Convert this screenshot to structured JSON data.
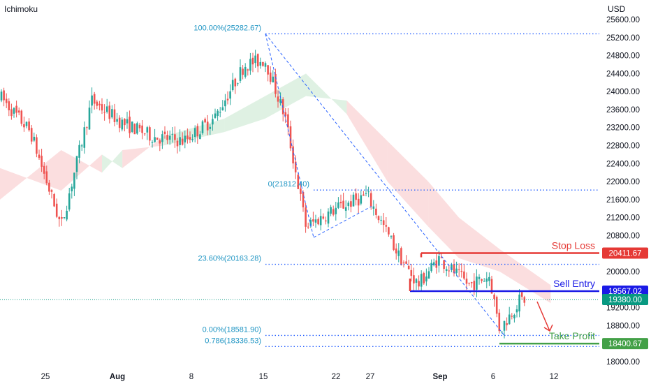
{
  "indicator_name": "Ichimoku",
  "currency": "USD",
  "colors": {
    "up": "#26a69a",
    "down": "#ef5350",
    "fib": "#2962ff",
    "fib_text": "#2196c4",
    "stop": "#e53935",
    "entry": "#1a1ae6",
    "profit": "#43a047",
    "current": "#089981",
    "cloud_bull": "#b7dfc0",
    "cloud_bear": "#f7b6b8",
    "axis_text": "#131722"
  },
  "chart_data": {
    "type": "candlestick",
    "title": "",
    "y_axis_labels": [
      "25600.00",
      "25200.00",
      "24800.00",
      "24400.00",
      "24000.00",
      "23600.00",
      "23200.00",
      "22800.00",
      "22400.00",
      "22000.00",
      "21600.00",
      "21200.00",
      "20800.00",
      "20400.00",
      "20000.00",
      "19600.00",
      "19200.00",
      "18800.00",
      "18400.00",
      "18000.00"
    ],
    "x_axis_labels": [
      "25",
      "Aug",
      "8",
      "15",
      "22",
      "27",
      "Sep",
      "6",
      "12"
    ],
    "ylim": [
      17850,
      25900
    ],
    "fib_levels": [
      {
        "label": "100.00%(25282.67)",
        "value": 25282.67
      },
      {
        "label": "0(21812.40)",
        "value": 21812.4
      },
      {
        "label": "23.60%(20163.28)",
        "value": 20163.28
      },
      {
        "label": "0.00%(18581.90)",
        "value": 18581.9
      },
      {
        "label": "0.786(18336.53)",
        "value": 18336.53
      }
    ],
    "annotations": {
      "stop_loss": {
        "label": "Stop Loss",
        "value": 20411.67,
        "value_label": "20411.67"
      },
      "sell_entry": {
        "label": "Sell Entry",
        "value": 19567.02,
        "value_label": "19567.02"
      },
      "take_profit": {
        "label": "Take Profit",
        "value": 18400.67,
        "value_label": "18400.67"
      },
      "current_price": {
        "value": 19380.0,
        "value_label": "19380.00"
      }
    },
    "price_path": [
      {
        "date": "Jul 20",
        "price": 23900
      },
      {
        "date": "Jul 23",
        "price": 23100
      },
      {
        "date": "Jul 26",
        "price": 21000
      },
      {
        "date": "Jul 29",
        "price": 23800
      },
      {
        "date": "Aug 1",
        "price": 23300
      },
      {
        "date": "Aug 4",
        "price": 23000
      },
      {
        "date": "Aug 7",
        "price": 22900
      },
      {
        "date": "Aug 10",
        "price": 23400
      },
      {
        "date": "Aug 13",
        "price": 24600
      },
      {
        "date": "Aug 15",
        "price": 24700
      },
      {
        "date": "Aug 17",
        "price": 23400
      },
      {
        "date": "Aug 19",
        "price": 21000
      },
      {
        "date": "Aug 22",
        "price": 21400
      },
      {
        "date": "Aug 25",
        "price": 21700
      },
      {
        "date": "Aug 28",
        "price": 20400
      },
      {
        "date": "Aug 30",
        "price": 19700
      },
      {
        "date": "Sep 1",
        "price": 20300
      },
      {
        "date": "Sep 4",
        "price": 19700
      },
      {
        "date": "Sep 6",
        "price": 19900
      },
      {
        "date": "Sep 7",
        "price": 18700
      },
      {
        "date": "Sep 9",
        "price": 19380
      }
    ],
    "cloud": [
      {
        "date": "Jul 20",
        "a": 22300,
        "b": 21600
      },
      {
        "date": "Jul 26",
        "a": 21800,
        "b": 22700
      },
      {
        "date": "Jul 30",
        "a": 22600,
        "b": 22200
      },
      {
        "date": "Aug 1",
        "a": 22300,
        "b": 22700
      },
      {
        "date": "Aug 5",
        "a": 23000,
        "b": 22800
      },
      {
        "date": "Aug 11",
        "a": 23400,
        "b": 23100
      },
      {
        "date": "Aug 15",
        "a": 23900,
        "b": 23400
      },
      {
        "date": "Aug 19",
        "a": 24400,
        "b": 23900
      },
      {
        "date": "Aug 23",
        "a": 23500,
        "b": 23800
      },
      {
        "date": "Aug 27",
        "a": 22000,
        "b": 22900
      },
      {
        "date": "Aug 31",
        "a": 21000,
        "b": 22000
      },
      {
        "date": "Sep 3",
        "a": 20300,
        "b": 21200
      },
      {
        "date": "Sep 7",
        "a": 20000,
        "b": 20500
      },
      {
        "date": "Sep 12",
        "a": 19300,
        "b": 19700
      }
    ]
  }
}
